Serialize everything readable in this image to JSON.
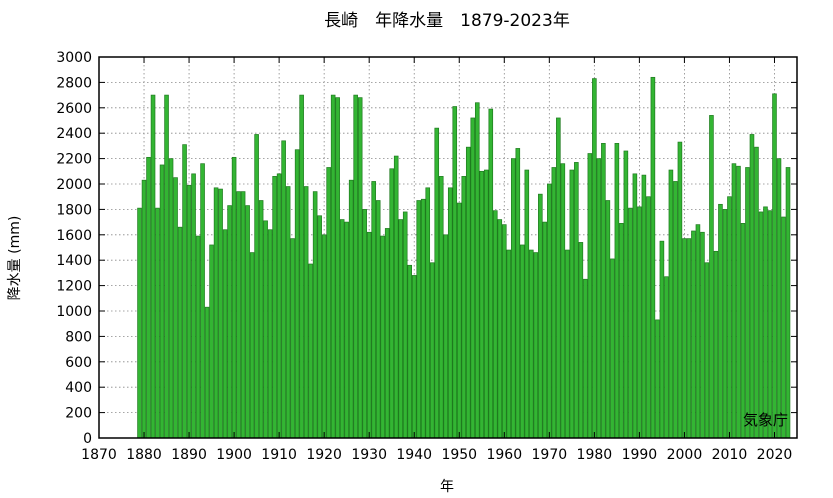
{
  "chart_data": {
    "type": "bar",
    "title": "長崎　年降水量　1879-2023年",
    "xlabel": "年",
    "ylabel": "降水量 (mm)",
    "xlim": [
      1870,
      2025
    ],
    "ylim": [
      0,
      3000
    ],
    "xticks": [
      1870,
      1880,
      1890,
      1900,
      1910,
      1920,
      1930,
      1940,
      1950,
      1960,
      1970,
      1980,
      1990,
      2000,
      2010,
      2020
    ],
    "yticks": [
      0,
      200,
      400,
      600,
      800,
      1000,
      1200,
      1400,
      1600,
      1800,
      2000,
      2200,
      2400,
      2600,
      2800,
      3000
    ],
    "grid": true,
    "bar_color": "#33b533",
    "bar_edge_color": "#1f7a1f",
    "credit": "気象庁",
    "x": [
      1879,
      1880,
      1881,
      1882,
      1883,
      1884,
      1885,
      1886,
      1887,
      1888,
      1889,
      1890,
      1891,
      1892,
      1893,
      1894,
      1895,
      1896,
      1897,
      1898,
      1899,
      1900,
      1901,
      1902,
      1903,
      1904,
      1905,
      1906,
      1907,
      1908,
      1909,
      1910,
      1911,
      1912,
      1913,
      1914,
      1915,
      1916,
      1917,
      1918,
      1919,
      1920,
      1921,
      1922,
      1923,
      1924,
      1925,
      1926,
      1927,
      1928,
      1929,
      1930,
      1931,
      1932,
      1933,
      1934,
      1935,
      1936,
      1937,
      1938,
      1939,
      1940,
      1941,
      1942,
      1943,
      1944,
      1945,
      1946,
      1947,
      1948,
      1949,
      1950,
      1951,
      1952,
      1953,
      1954,
      1955,
      1956,
      1957,
      1958,
      1959,
      1960,
      1961,
      1962,
      1963,
      1964,
      1965,
      1966,
      1967,
      1968,
      1969,
      1970,
      1971,
      1972,
      1973,
      1974,
      1975,
      1976,
      1977,
      1978,
      1979,
      1980,
      1981,
      1982,
      1983,
      1984,
      1985,
      1986,
      1987,
      1988,
      1989,
      1990,
      1991,
      1992,
      1993,
      1994,
      1995,
      1996,
      1997,
      1998,
      1999,
      2000,
      2001,
      2002,
      2003,
      2004,
      2005,
      2006,
      2007,
      2008,
      2009,
      2010,
      2011,
      2012,
      2013,
      2014,
      2015,
      2016,
      2017,
      2018,
      2019,
      2020,
      2021,
      2022,
      2023
    ],
    "values": [
      1810,
      2030,
      2210,
      2700,
      1810,
      2150,
      2700,
      2200,
      2050,
      1660,
      2310,
      1990,
      2080,
      1590,
      2160,
      1030,
      1520,
      1970,
      1960,
      1640,
      1830,
      2210,
      1940,
      1940,
      1830,
      1460,
      2390,
      1870,
      1710,
      1640,
      2060,
      2080,
      2340,
      1980,
      1570,
      2270,
      2700,
      1980,
      1370,
      1940,
      1750,
      1600,
      2130,
      2700,
      2680,
      1720,
      1700,
      2030,
      2700,
      2680,
      1800,
      1620,
      2020,
      1870,
      1590,
      1650,
      2120,
      2220,
      1720,
      1780,
      1360,
      1280,
      1870,
      1880,
      1970,
      1380,
      2440,
      2060,
      1600,
      1970,
      2610,
      1850,
      2060,
      2290,
      2520,
      2640,
      2100,
      2110,
      2590,
      1790,
      1720,
      1680,
      1480,
      2200,
      2280,
      1520,
      2110,
      1480,
      1460,
      1920,
      1700,
      2000,
      2130,
      2520,
      2160,
      1480,
      2110,
      2170,
      1540,
      1250,
      2240,
      2830,
      2200,
      2320,
      1870,
      1410,
      2320,
      1690,
      2260,
      1810,
      2080,
      1820,
      2070,
      1900,
      2840,
      930,
      1550,
      1270,
      2110,
      2020,
      2330,
      1570,
      1570,
      1630,
      1680,
      1620,
      1380,
      2540,
      1470,
      1840,
      1800,
      1900,
      2160,
      2140,
      1690,
      2130,
      2390,
      2290,
      1780,
      1820,
      1790,
      2710,
      2200,
      1740,
      2130
    ]
  }
}
